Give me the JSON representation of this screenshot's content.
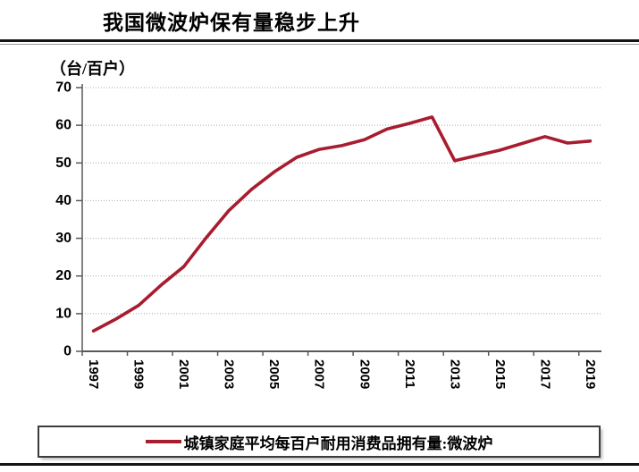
{
  "page": {
    "background": "#ffffff"
  },
  "header": {
    "title": "我国微波炉保有量稳步上升"
  },
  "chart_data": {
    "type": "line",
    "title": "我国微波炉保有量稳步上升",
    "unit_label": "（台/百户）",
    "xlabel": "",
    "ylabel": "",
    "x": [
      1997,
      1998,
      1999,
      2000,
      2001,
      2002,
      2003,
      2004,
      2005,
      2006,
      2007,
      2008,
      2009,
      2010,
      2011,
      2012,
      2013,
      2014,
      2015,
      2016,
      2017,
      2018,
      2019
    ],
    "x_tick_label_interval": 2,
    "ylim": [
      0,
      70
    ],
    "ytick_step": 10,
    "grid": "horizontal-dotted",
    "legend_position": "bottom-boxed",
    "series": [
      {
        "name": "城镇家庭平均每百户耐用消费品拥有量:微波炉",
        "color": "#A81C30",
        "values": [
          5.4,
          8.6,
          12.2,
          17.6,
          22.5,
          30.2,
          37.4,
          43.0,
          47.6,
          51.5,
          53.6,
          54.6,
          56.2,
          59.0,
          60.5,
          62.2,
          50.6,
          52.0,
          53.4,
          55.2,
          57.0,
          55.3,
          55.8
        ]
      }
    ],
    "colors": {
      "grid": "#A9A9A9",
      "axis": "#595959",
      "tick_text": "#000000"
    }
  }
}
